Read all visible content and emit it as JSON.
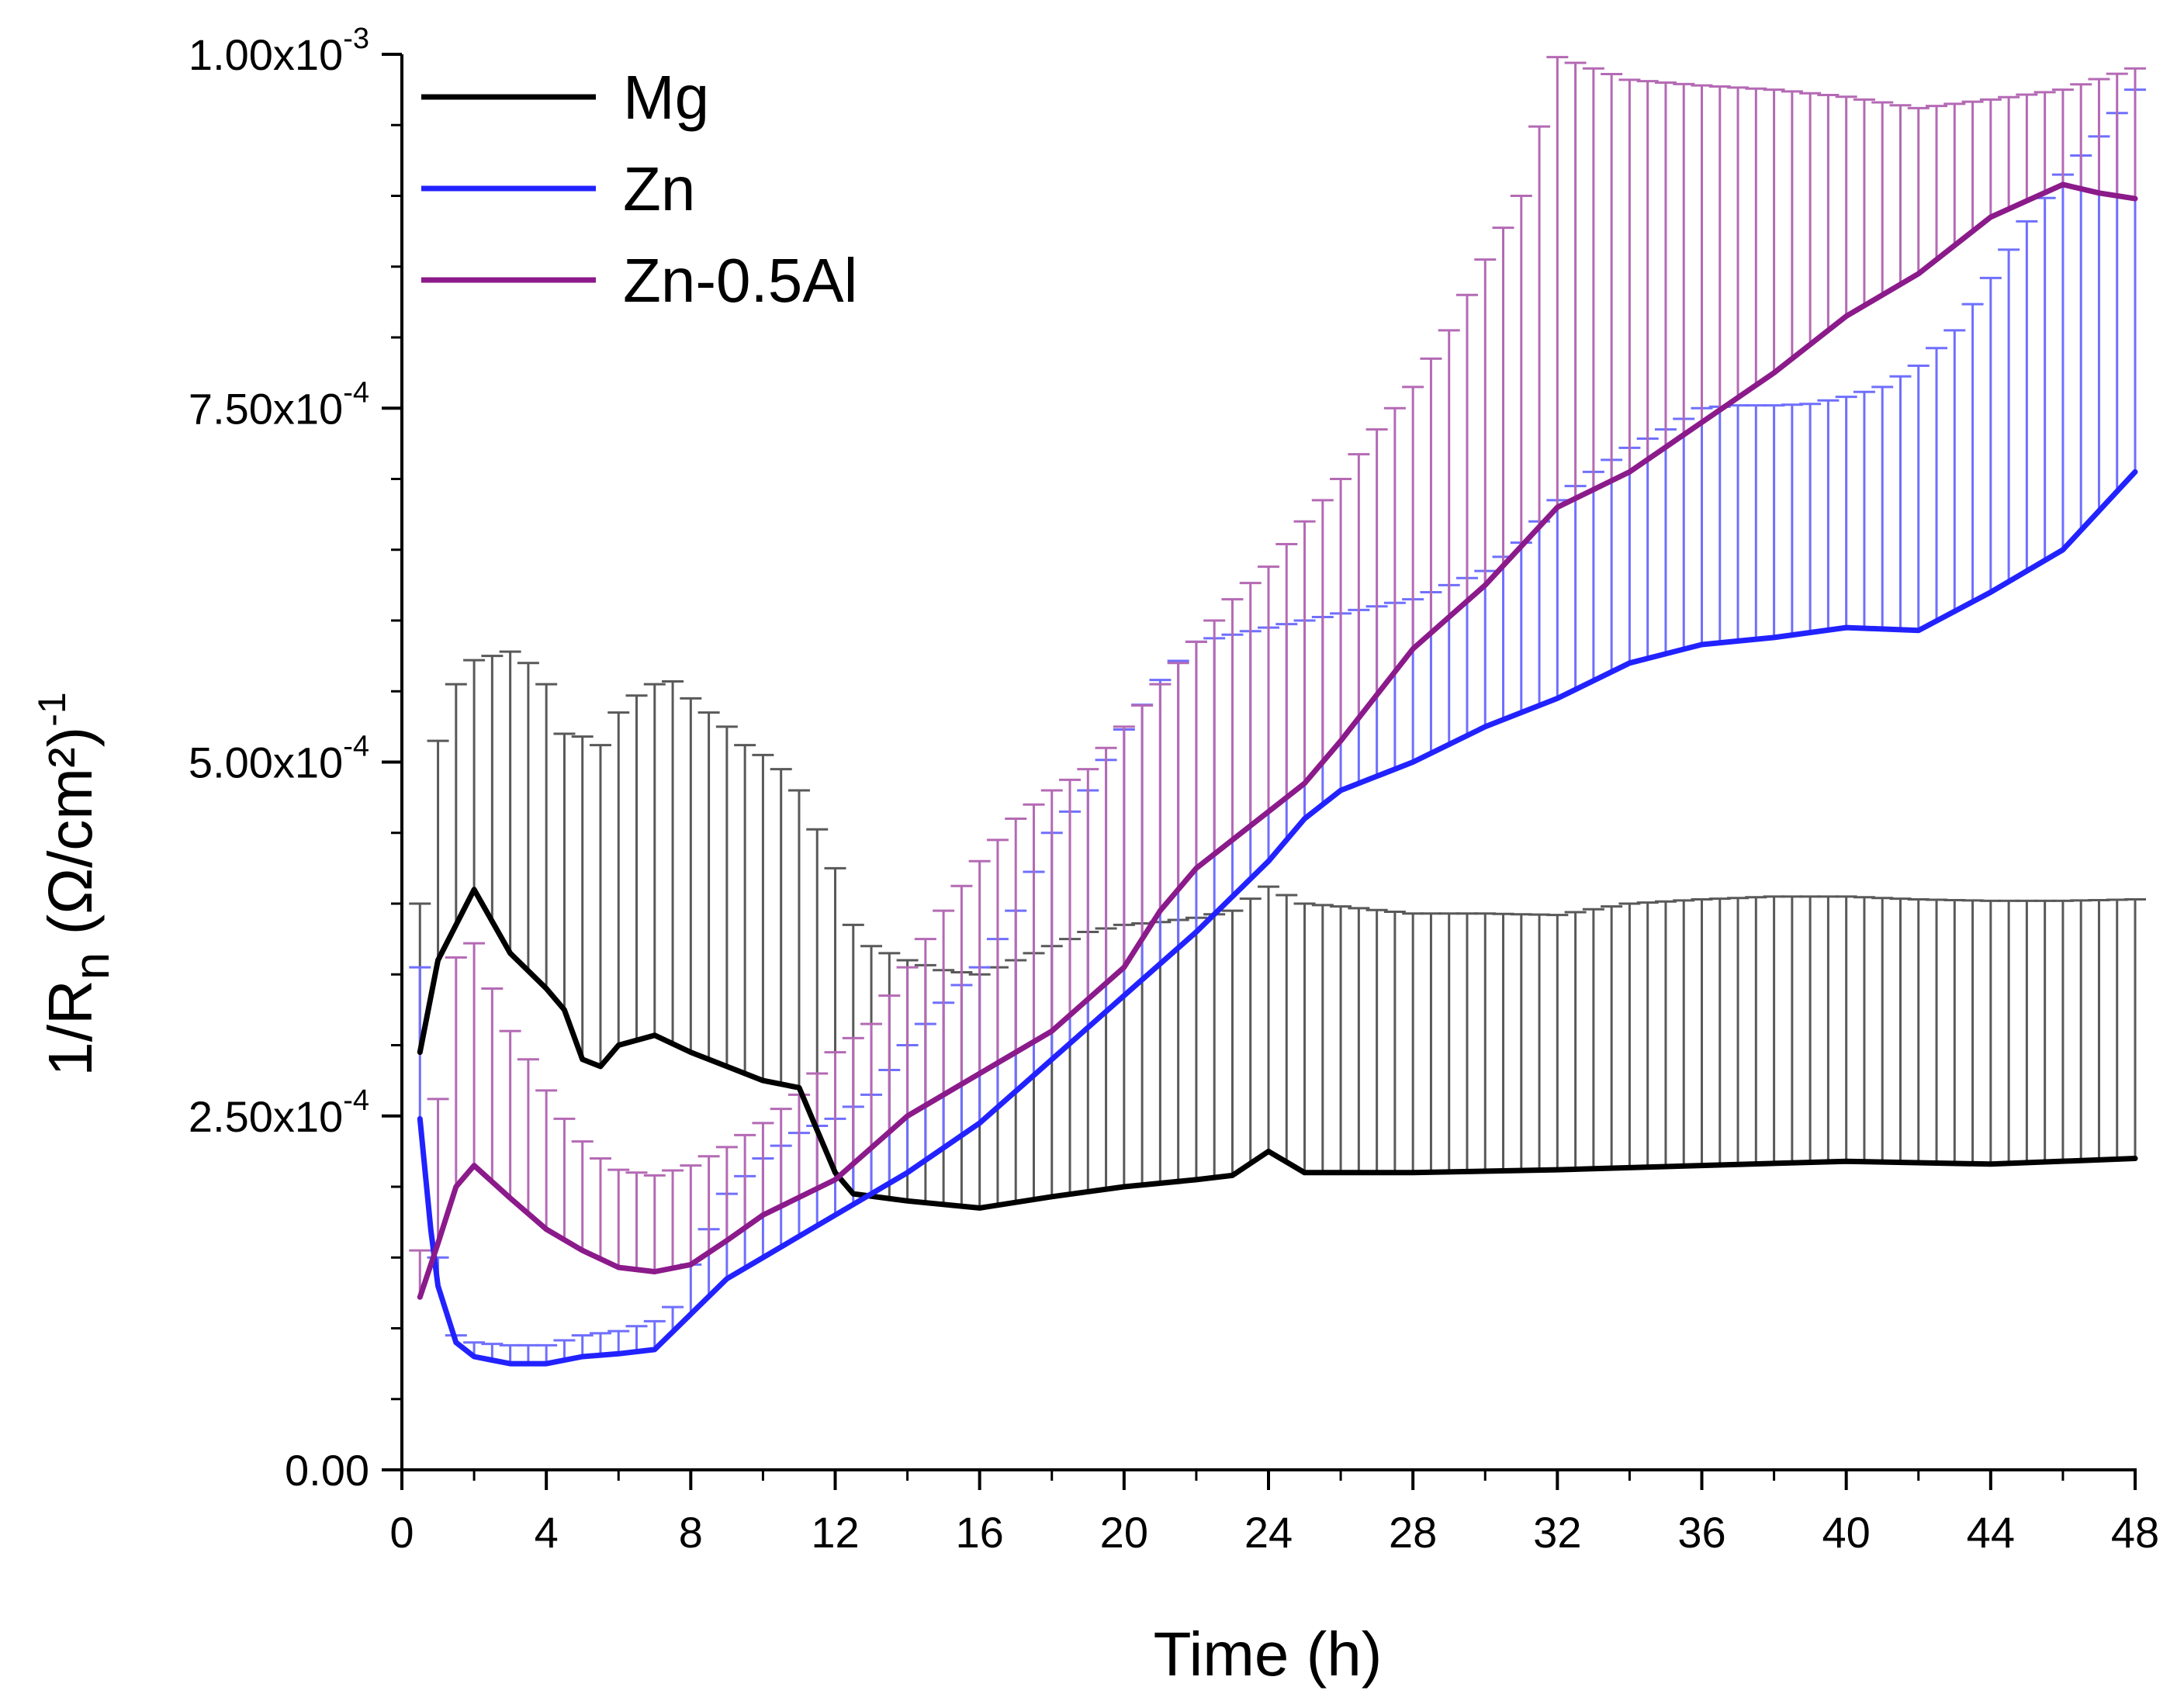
{
  "chart_data": {
    "type": "line",
    "title": "",
    "xlabel": "Time (h)",
    "ylabel": "1/R",
    "ylabel_sub": "n",
    "ylabel_unit": "(Ω/cm²)",
    "ylabel_exp": "-1",
    "xlim": [
      0,
      48
    ],
    "ylim": [
      0,
      0.001
    ],
    "x_ticks": [
      0,
      4,
      8,
      12,
      16,
      20,
      24,
      28,
      32,
      36,
      40,
      44,
      48
    ],
    "x_tick_labels": [
      "0",
      "4",
      "8",
      "12",
      "16",
      "20",
      "24",
      "28",
      "32",
      "36",
      "40",
      "44",
      "48"
    ],
    "y_ticks": [
      0,
      0.00025,
      0.0005,
      0.00075,
      0.001
    ],
    "y_tick_labels": [
      {
        "mantissa": "0.00",
        "exp": ""
      },
      {
        "mantissa": "2.50x10",
        "exp": "-4"
      },
      {
        "mantissa": "5.00x10",
        "exp": "-4"
      },
      {
        "mantissa": "7.50x10",
        "exp": "-4"
      },
      {
        "mantissa": "1.00x10",
        "exp": "-3"
      }
    ],
    "legend_position": "top-left",
    "series": [
      {
        "name": "Mg",
        "color": "#000000",
        "values": [
          [
            0.5,
            0.000295
          ],
          [
            1,
            0.00036
          ],
          [
            2,
            0.00041
          ],
          [
            3,
            0.000365
          ],
          [
            4,
            0.00034
          ],
          [
            4.5,
            0.000325
          ],
          [
            5,
            0.00029
          ],
          [
            5.5,
            0.000285
          ],
          [
            6,
            0.0003
          ],
          [
            7,
            0.000307
          ],
          [
            8,
            0.000295
          ],
          [
            9,
            0.000285
          ],
          [
            10,
            0.000275
          ],
          [
            11,
            0.00027
          ],
          [
            11.5,
            0.00024
          ],
          [
            12,
            0.00021
          ],
          [
            12.5,
            0.000195
          ],
          [
            14,
            0.00019
          ],
          [
            16,
            0.000185
          ],
          [
            18,
            0.000193
          ],
          [
            20,
            0.0002
          ],
          [
            22,
            0.000205
          ],
          [
            23,
            0.000208
          ],
          [
            24,
            0.000225
          ],
          [
            25,
            0.00021
          ],
          [
            28,
            0.00021
          ],
          [
            32,
            0.000212
          ],
          [
            36,
            0.000215
          ],
          [
            40,
            0.000218
          ],
          [
            44,
            0.000216
          ],
          [
            48,
            0.00022
          ]
        ],
        "error_upper": [
          [
            0.5,
            0.0004
          ],
          [
            1,
            0.000515
          ],
          [
            1.5,
            0.000555
          ],
          [
            2,
            0.000572
          ],
          [
            2.5,
            0.000575
          ],
          [
            3,
            0.000578
          ],
          [
            3.5,
            0.00057
          ],
          [
            4,
            0.000555
          ],
          [
            4.5,
            0.00052
          ],
          [
            5,
            0.000518
          ],
          [
            5.5,
            0.000512
          ],
          [
            6,
            0.000535
          ],
          [
            6.5,
            0.000547
          ],
          [
            7,
            0.000555
          ],
          [
            7.5,
            0.000557
          ],
          [
            8,
            0.000545
          ],
          [
            8.5,
            0.000535
          ],
          [
            9,
            0.000525
          ],
          [
            9.5,
            0.000512
          ],
          [
            10,
            0.000505
          ],
          [
            10.5,
            0.000495
          ],
          [
            11,
            0.00048
          ],
          [
            12,
            0.000425
          ],
          [
            12.5,
            0.000385
          ],
          [
            13,
            0.00037
          ],
          [
            14,
            0.00036
          ],
          [
            15,
            0.000353
          ],
          [
            16,
            0.00035
          ],
          [
            17,
            0.00036
          ],
          [
            18,
            0.00037
          ],
          [
            19,
            0.00038
          ],
          [
            20,
            0.000385
          ],
          [
            21,
            0.000387
          ],
          [
            22,
            0.00039
          ],
          [
            23,
            0.000395
          ],
          [
            24,
            0.000412
          ],
          [
            25,
            0.0004
          ],
          [
            26,
            0.000398
          ],
          [
            28,
            0.000393
          ],
          [
            30,
            0.000393
          ],
          [
            32,
            0.000392
          ],
          [
            34,
            0.0004
          ],
          [
            36,
            0.000403
          ],
          [
            38,
            0.000405
          ],
          [
            40,
            0.000405
          ],
          [
            42,
            0.000403
          ],
          [
            44,
            0.000402
          ],
          [
            46,
            0.000402
          ],
          [
            48,
            0.000403
          ]
        ]
      },
      {
        "name": "Zn",
        "color": "#2222ff",
        "values": [
          [
            0.5,
            0.000248
          ],
          [
            0.8,
            0.00017
          ],
          [
            1,
            0.00013
          ],
          [
            1.5,
            9e-05
          ],
          [
            2,
            8e-05
          ],
          [
            3,
            7.5e-05
          ],
          [
            4,
            7.5e-05
          ],
          [
            5,
            8e-05
          ],
          [
            6,
            8.2e-05
          ],
          [
            7,
            8.5e-05
          ],
          [
            8,
            0.00011
          ],
          [
            9,
            0.000135
          ],
          [
            10,
            0.00015
          ],
          [
            12,
            0.00018
          ],
          [
            14,
            0.00021
          ],
          [
            16,
            0.000245
          ],
          [
            18,
            0.00029
          ],
          [
            20,
            0.000335
          ],
          [
            22,
            0.00038
          ],
          [
            24,
            0.00043
          ],
          [
            25,
            0.00046
          ],
          [
            26,
            0.00048
          ],
          [
            28,
            0.0005
          ],
          [
            30,
            0.000525
          ],
          [
            32,
            0.000545
          ],
          [
            34,
            0.00057
          ],
          [
            36,
            0.000583
          ],
          [
            38,
            0.000588
          ],
          [
            40,
            0.000595
          ],
          [
            42,
            0.000593
          ],
          [
            44,
            0.00062
          ],
          [
            46,
            0.00065
          ],
          [
            48,
            0.000705
          ]
        ],
        "error_upper": [
          [
            0.5,
            0.000355
          ],
          [
            1,
            0.00015
          ],
          [
            1.5,
            9.5e-05
          ],
          [
            2,
            9e-05
          ],
          [
            3,
            8.8e-05
          ],
          [
            4,
            8.8e-05
          ],
          [
            5,
            9.5e-05
          ],
          [
            6,
            9.8e-05
          ],
          [
            7,
            0.000105
          ],
          [
            7.5,
            0.000115
          ],
          [
            8,
            0.000145
          ],
          [
            9,
            0.000195
          ],
          [
            10,
            0.00022
          ],
          [
            11,
            0.000238
          ],
          [
            12,
            0.000248
          ],
          [
            13,
            0.000265
          ],
          [
            14,
            0.0003
          ],
          [
            15,
            0.00033
          ],
          [
            16,
            0.000355
          ],
          [
            17,
            0.000395
          ],
          [
            18,
            0.00045
          ],
          [
            19,
            0.00048
          ],
          [
            20,
            0.000523
          ],
          [
            21,
            0.000558
          ],
          [
            22,
            0.000585
          ],
          [
            24,
            0.000595
          ],
          [
            26,
            0.000605
          ],
          [
            28,
            0.000615
          ],
          [
            30,
            0.000635
          ],
          [
            31,
            0.000655
          ],
          [
            32,
            0.000685
          ],
          [
            33,
            0.000705
          ],
          [
            34,
            0.000722
          ],
          [
            35,
            0.000735
          ],
          [
            36,
            0.00075
          ],
          [
            37,
            0.000752
          ],
          [
            38,
            0.000752
          ],
          [
            39,
            0.000753
          ],
          [
            40,
            0.000758
          ],
          [
            41,
            0.000765
          ],
          [
            42,
            0.00078
          ],
          [
            43,
            0.000805
          ],
          [
            44,
            0.000842
          ],
          [
            45,
            0.000882
          ],
          [
            46,
            0.000915
          ],
          [
            47,
            0.000942
          ],
          [
            48,
            0.000975
          ]
        ]
      },
      {
        "name": "Zn-0.5Al",
        "color": "#8b1a8b",
        "values": [
          [
            0.5,
            0.000122
          ],
          [
            1,
            0.00016
          ],
          [
            1.5,
            0.0002
          ],
          [
            2,
            0.000215
          ],
          [
            3,
            0.000192
          ],
          [
            4,
            0.00017
          ],
          [
            5,
            0.000155
          ],
          [
            6,
            0.000143
          ],
          [
            7,
            0.00014
          ],
          [
            8,
            0.000145
          ],
          [
            9,
            0.000162
          ],
          [
            10,
            0.00018
          ],
          [
            12,
            0.000205
          ],
          [
            14,
            0.00025
          ],
          [
            16,
            0.00028
          ],
          [
            18,
            0.00031
          ],
          [
            20,
            0.000355
          ],
          [
            21,
            0.000395
          ],
          [
            22,
            0.000425
          ],
          [
            24,
            0.000465
          ],
          [
            25,
            0.000485
          ],
          [
            26,
            0.000515
          ],
          [
            28,
            0.00058
          ],
          [
            30,
            0.000625
          ],
          [
            32,
            0.00068
          ],
          [
            34,
            0.000705
          ],
          [
            36,
            0.00074
          ],
          [
            38,
            0.000775
          ],
          [
            40,
            0.000815
          ],
          [
            42,
            0.000845
          ],
          [
            44,
            0.000885
          ],
          [
            46,
            0.000908
          ],
          [
            47,
            0.000902
          ],
          [
            48,
            0.000898
          ]
        ],
        "error_upper": [
          [
            0.5,
            0.000155
          ],
          [
            1,
            0.000262
          ],
          [
            1.5,
            0.000362
          ],
          [
            2,
            0.000372
          ],
          [
            2.5,
            0.00034
          ],
          [
            3,
            0.00031
          ],
          [
            3.5,
            0.00029
          ],
          [
            4,
            0.000268
          ],
          [
            4.5,
            0.000248
          ],
          [
            5,
            0.000232
          ],
          [
            5.5,
            0.00022
          ],
          [
            6,
            0.000212
          ],
          [
            7,
            0.000208
          ],
          [
            8,
            0.000215
          ],
          [
            9,
            0.000228
          ],
          [
            10,
            0.000245
          ],
          [
            11,
            0.000265
          ],
          [
            12,
            0.000295
          ],
          [
            13,
            0.000315
          ],
          [
            14,
            0.000355
          ],
          [
            15,
            0.000395
          ],
          [
            16,
            0.00043
          ],
          [
            17,
            0.00046
          ],
          [
            18,
            0.00048
          ],
          [
            19,
            0.000495
          ],
          [
            20,
            0.000525
          ],
          [
            21,
            0.000555
          ],
          [
            22,
            0.000585
          ],
          [
            23,
            0.000615
          ],
          [
            24,
            0.000638
          ],
          [
            25,
            0.00067
          ],
          [
            26,
            0.0007
          ],
          [
            27,
            0.000735
          ],
          [
            28,
            0.000765
          ],
          [
            29,
            0.000805
          ],
          [
            30,
            0.000855
          ],
          [
            31,
            0.0009
          ],
          [
            32,
            0.000998
          ],
          [
            33,
            0.00099
          ],
          [
            34,
            0.000982
          ],
          [
            36,
            0.000978
          ],
          [
            38,
            0.000975
          ],
          [
            40,
            0.00097
          ],
          [
            42,
            0.000962
          ],
          [
            44,
            0.000968
          ],
          [
            46,
            0.000975
          ],
          [
            48,
            0.00099
          ]
        ]
      }
    ]
  }
}
